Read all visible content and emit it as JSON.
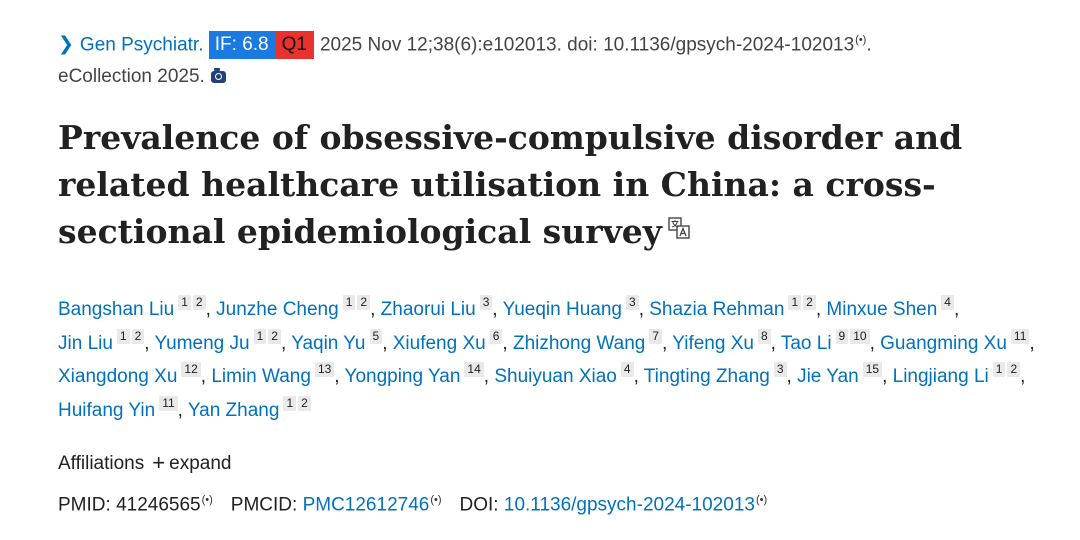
{
  "citation": {
    "journal": "Gen Psychiatr.",
    "if_badge": "IF: 6.8",
    "quartile_badge": "Q1",
    "details": "2025 Nov 12;38(6):e102013. doi: 10.1136/gpsych-2024-102013",
    "period": ".",
    "ecollection": "eCollection 2025.",
    "colors": {
      "link": "#0071bc",
      "if_badge_bg": "#1a7ae0",
      "q_badge_bg": "#e8322e"
    }
  },
  "icons": {
    "chevron": "chevron-right-icon",
    "camera": "camera-icon",
    "translate": "translate-icon",
    "wave": "broadcast-icon"
  },
  "wave_glyph": "(•)",
  "title": "Prevalence of obsessive-compulsive disorder and related healthcare utilisation in China: a cross-sectional epidemiological survey",
  "authors": [
    {
      "name": "Bangshan Liu",
      "affs": [
        "1",
        "2"
      ]
    },
    {
      "name": "Junzhe Cheng",
      "affs": [
        "1",
        "2"
      ]
    },
    {
      "name": "Zhaorui Liu",
      "affs": [
        "3"
      ]
    },
    {
      "name": "Yueqin Huang",
      "affs": [
        "3"
      ]
    },
    {
      "name": "Shazia Rehman",
      "affs": [
        "1",
        "2"
      ]
    },
    {
      "name": "Minxue Shen",
      "affs": [
        "4"
      ]
    },
    {
      "name": "Jin Liu",
      "affs": [
        "1",
        "2"
      ]
    },
    {
      "name": "Yumeng Ju",
      "affs": [
        "1",
        "2"
      ]
    },
    {
      "name": "Yaqin Yu",
      "affs": [
        "5"
      ]
    },
    {
      "name": "Xiufeng Xu",
      "affs": [
        "6"
      ]
    },
    {
      "name": "Zhizhong Wang",
      "affs": [
        "7"
      ]
    },
    {
      "name": "Yifeng Xu",
      "affs": [
        "8"
      ]
    },
    {
      "name": "Tao Li",
      "affs": [
        "9",
        "10"
      ]
    },
    {
      "name": "Guangming Xu",
      "affs": [
        "11"
      ]
    },
    {
      "name": "Xiangdong Xu",
      "affs": [
        "12"
      ]
    },
    {
      "name": "Limin Wang",
      "affs": [
        "13"
      ]
    },
    {
      "name": "Yongping Yan",
      "affs": [
        "14"
      ]
    },
    {
      "name": "Shuiyuan Xiao",
      "affs": [
        "4"
      ]
    },
    {
      "name": "Tingting Zhang",
      "affs": [
        "3"
      ]
    },
    {
      "name": "Jie Yan",
      "affs": [
        "15"
      ]
    },
    {
      "name": "Lingjiang Li",
      "affs": [
        "1",
        "2"
      ]
    },
    {
      "name": "Huifang Yin",
      "affs": [
        "11"
      ]
    },
    {
      "name": "Yan Zhang",
      "affs": [
        "1",
        "2"
      ]
    }
  ],
  "affiliations": {
    "label": "Affiliations",
    "expand_symbol": "+",
    "expand_label": "expand"
  },
  "identifiers": {
    "pmid_label": "PMID:",
    "pmid": "41246565",
    "pmcid_label": "PMCID:",
    "pmcid": "PMC12612746",
    "doi_label": "DOI:",
    "doi": "10.1136/gpsych-2024-102013"
  }
}
